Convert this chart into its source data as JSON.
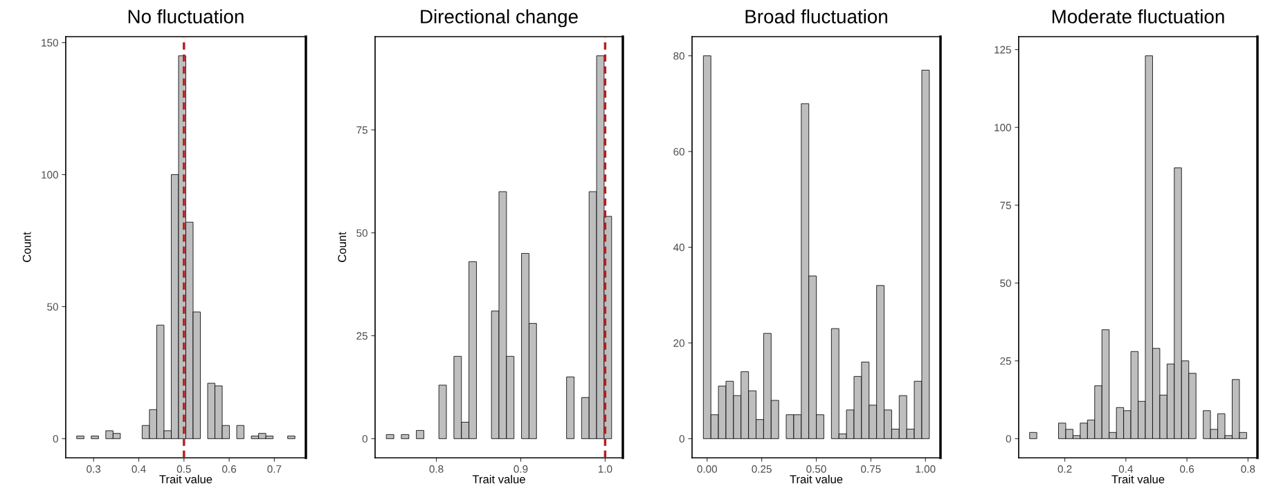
{
  "chart_data": [
    {
      "type": "histogram",
      "title": "No fluctuation",
      "xlabel": "Trait value",
      "ylabel": "Count",
      "color": "#bebebe",
      "bins": [
        0.2626,
        0.2787,
        0.2948,
        0.3109,
        0.327,
        0.3431,
        0.3592,
        0.3753,
        0.3914,
        0.4075,
        0.4236,
        0.4397,
        0.4558,
        0.4719,
        0.488,
        0.5041,
        0.5202,
        0.5363,
        0.5524,
        0.5685,
        0.5846,
        0.6007,
        0.6168,
        0.6329,
        0.649,
        0.6651,
        0.6812,
        0.6973,
        0.7134,
        0.7295,
        0.7456
      ],
      "values": [
        1,
        0,
        1,
        0,
        3,
        2,
        0,
        0,
        0,
        5,
        11,
        43,
        3,
        100,
        145,
        82,
        48,
        0,
        21,
        20,
        5,
        0,
        5,
        0,
        1,
        2,
        1,
        0,
        0,
        1
      ],
      "xlim": [
        0.2384,
        0.7698
      ],
      "ylim": [
        -7.25,
        152.25
      ],
      "xticks": [
        0.3,
        0.4,
        0.5,
        0.6,
        0.7
      ],
      "yticks": [
        0,
        50,
        100,
        150
      ],
      "ref_lines": [
        {
          "axis": "x",
          "value": 0.5,
          "color": "#b22222",
          "line_style": "dashed"
        }
      ],
      "grid": false
    },
    {
      "type": "histogram",
      "title": "Directional change",
      "xlabel": "Trait value",
      "ylabel": "Count",
      "color": "#bebebe",
      "bins": [
        0.7407,
        0.7496,
        0.7585,
        0.7674,
        0.7763,
        0.7852,
        0.7941,
        0.803,
        0.8119,
        0.8208,
        0.8297,
        0.8386,
        0.8475,
        0.8564,
        0.8653,
        0.8742,
        0.8831,
        0.892,
        0.9009,
        0.9098,
        0.9187,
        0.9276,
        0.9365,
        0.9454,
        0.9543,
        0.9632,
        0.9721,
        0.981,
        0.9899,
        0.9988,
        1.0077
      ],
      "values": [
        1,
        0,
        1,
        0,
        2,
        0,
        0,
        13,
        0,
        20,
        4,
        43,
        0,
        0,
        31,
        60,
        20,
        0,
        45,
        28,
        0,
        0,
        0,
        0,
        15,
        0,
        10,
        60,
        93,
        54
      ],
      "xlim": [
        0.7274,
        1.021
      ],
      "ylim": [
        -4.65,
        97.65
      ],
      "xticks": [
        {
          "value": 0.8,
          "label": "0.8"
        },
        {
          "value": 0.9,
          "label": "0.9"
        },
        {
          "value": 1.0,
          "label": "1.0"
        }
      ],
      "yticks": [
        0,
        25,
        50,
        75
      ],
      "ref_lines": [
        {
          "axis": "x",
          "value": 1.0,
          "color": "#b22222",
          "line_style": "dashed"
        }
      ],
      "grid": false
    },
    {
      "type": "histogram",
      "title": "Broad fluctuation",
      "xlabel": "Trait value",
      "color": "#bebebe",
      "bins": [
        -0.0172,
        0.0173,
        0.0518,
        0.0863,
        0.1208,
        0.1553,
        0.1898,
        0.2243,
        0.2588,
        0.2933,
        0.3278,
        0.3623,
        0.3968,
        0.4313,
        0.4658,
        0.5003,
        0.5348,
        0.5693,
        0.6038,
        0.6383,
        0.6728,
        0.7073,
        0.7418,
        0.7763,
        0.8108,
        0.8453,
        0.8798,
        0.9143,
        0.9488,
        0.9833,
        1.0178
      ],
      "values": [
        80,
        5,
        11,
        12,
        9,
        14,
        10,
        4,
        22,
        8,
        0,
        5,
        5,
        70,
        34,
        5,
        0,
        23,
        1,
        6,
        13,
        16,
        7,
        32,
        6,
        2,
        9,
        2,
        12,
        77
      ],
      "xlim": [
        -0.069,
        1.069
      ],
      "ylim": [
        -4,
        84
      ],
      "xticks": [
        {
          "value": 0,
          "label": "0.00"
        },
        {
          "value": 0.25,
          "label": "0.25"
        },
        {
          "value": 0.5,
          "label": "0.50"
        },
        {
          "value": 0.75,
          "label": "0.75"
        },
        {
          "value": 1,
          "label": "1.00"
        }
      ],
      "yticks": [
        0,
        20,
        40,
        60,
        80
      ],
      "grid": false
    },
    {
      "type": "histogram",
      "title": "Moderate fluctuation",
      "xlabel": "Trait value",
      "color": "#bebebe",
      "bins": [
        0.0846,
        0.1083,
        0.132,
        0.1557,
        0.1794,
        0.2031,
        0.2268,
        0.2505,
        0.2742,
        0.2979,
        0.3216,
        0.3453,
        0.369,
        0.3927,
        0.4164,
        0.4401,
        0.4638,
        0.4875,
        0.5112,
        0.5349,
        0.5586,
        0.5823,
        0.606,
        0.6297,
        0.6534,
        0.6771,
        0.7008,
        0.7245,
        0.7482,
        0.7719,
        0.7956
      ],
      "values": [
        2,
        0,
        0,
        0,
        5,
        3,
        1,
        5,
        6,
        17,
        35,
        2,
        10,
        9,
        28,
        12,
        123,
        29,
        14,
        24,
        87,
        25,
        21,
        0,
        9,
        3,
        8,
        1,
        19,
        2
      ],
      "xlim": [
        0.049,
        0.831
      ],
      "ylim": [
        -6.15,
        129.15
      ],
      "xticks": [
        0.2,
        0.4,
        0.6,
        0.8
      ],
      "yticks": [
        0,
        25,
        50,
        75,
        100,
        125
      ],
      "grid": false
    }
  ]
}
